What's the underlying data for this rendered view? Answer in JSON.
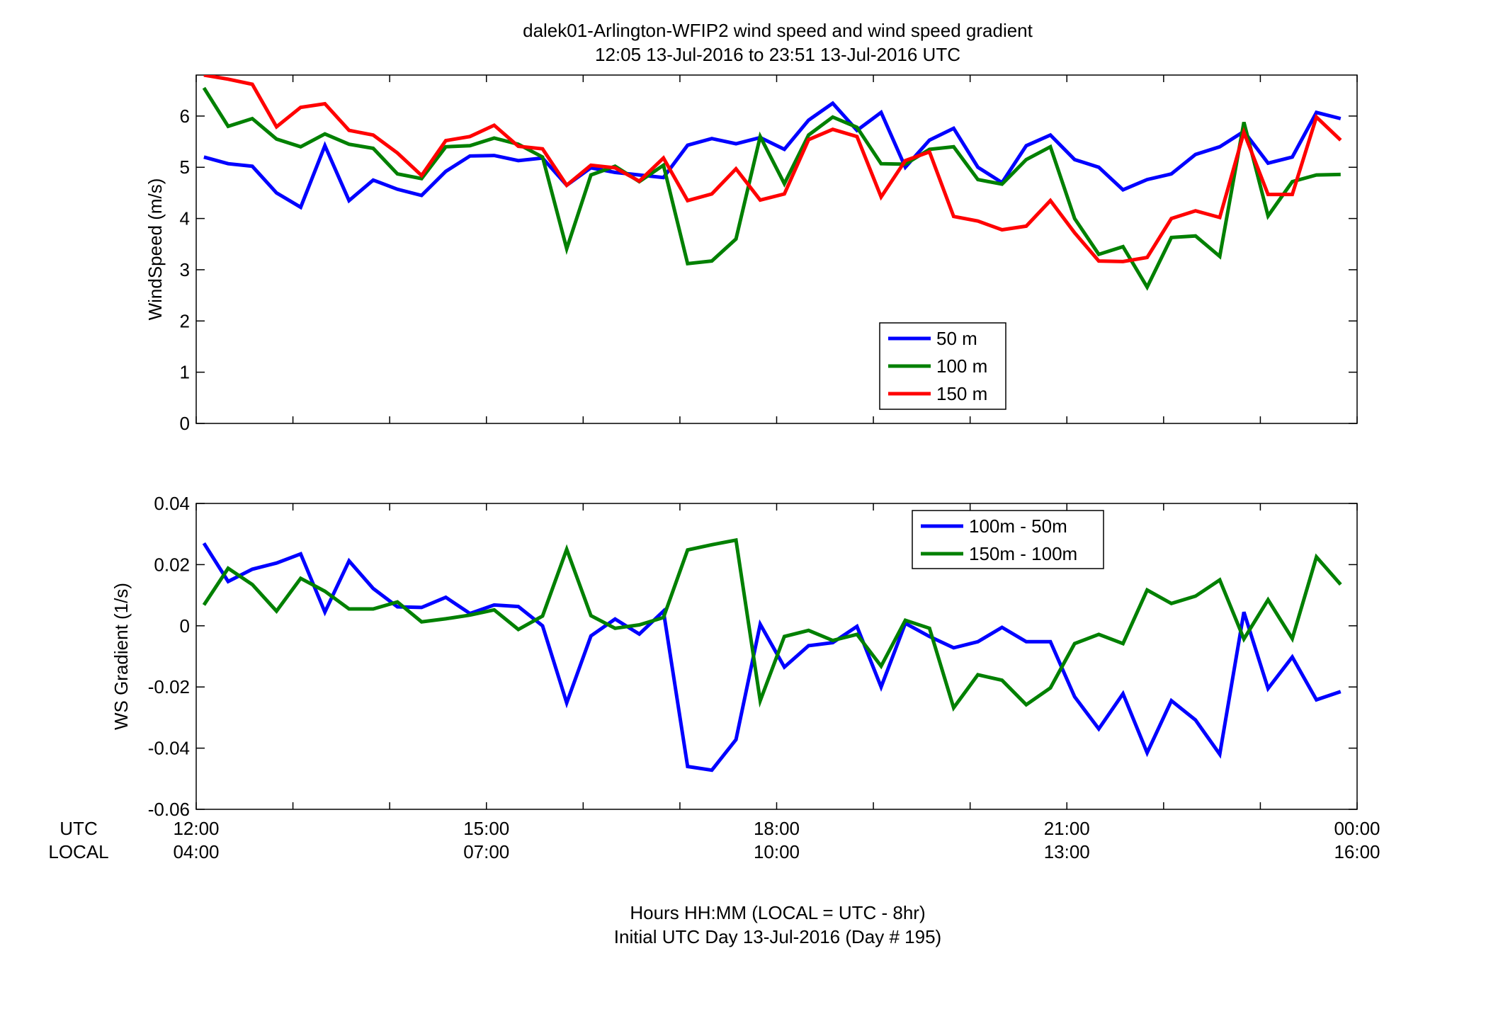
{
  "page": {
    "title_line1": "dalek01-Arlington-WFIP2  wind speed and wind speed gradient",
    "title_line2": "12:05 13-Jul-2016 to 23:51 13-Jul-2016  UTC",
    "row_label_utc": "UTC",
    "row_label_local": "LOCAL",
    "xlabel_line1": "Hours HH:MM  (LOCAL = UTC - 8hr)",
    "xlabel_line2": "Initial UTC Day 13-Jul-2016 (Day # 195)",
    "x_ticks_utc": [
      "12:00",
      "15:00",
      "18:00",
      "21:00",
      "00:00"
    ],
    "x_ticks_local": [
      "04:00",
      "07:00",
      "10:00",
      "13:00",
      "16:00"
    ]
  },
  "chart_data": [
    {
      "type": "line",
      "ylabel": "WindSpeed (m/s)",
      "xlim": [
        12.0,
        24.0
      ],
      "ylim": [
        0,
        6.8
      ],
      "yticks": [
        0,
        1,
        2,
        3,
        4,
        5,
        6
      ],
      "legend_position": "bottom-center",
      "x": [
        12.08,
        12.33,
        12.58,
        12.83,
        13.08,
        13.33,
        13.58,
        13.83,
        14.08,
        14.33,
        14.58,
        14.83,
        15.08,
        15.33,
        15.58,
        15.83,
        16.08,
        16.33,
        16.58,
        16.83,
        17.08,
        17.33,
        17.58,
        17.83,
        18.08,
        18.33,
        18.58,
        18.83,
        19.08,
        19.33,
        19.58,
        19.83,
        20.08,
        20.33,
        20.58,
        20.83,
        21.08,
        21.33,
        21.58,
        21.83,
        22.08,
        22.33,
        22.58,
        22.83,
        23.08,
        23.33,
        23.58,
        23.83
      ],
      "series": [
        {
          "name": "50 m",
          "color": "#0000ff",
          "values": [
            5.2,
            5.07,
            5.02,
            4.5,
            4.22,
            5.42,
            4.35,
            4.75,
            4.57,
            4.45,
            4.92,
            5.22,
            5.23,
            5.13,
            5.18,
            4.65,
            4.99,
            4.9,
            4.85,
            4.8,
            5.43,
            5.56,
            5.46,
            5.58,
            5.35,
            5.92,
            6.25,
            5.72,
            6.07,
            5.0,
            5.53,
            5.76,
            5.0,
            4.7,
            5.42,
            5.63,
            5.15,
            5.0,
            4.56,
            4.76,
            4.87,
            5.25,
            5.4,
            5.7,
            5.08,
            5.2,
            6.07,
            5.95
          ]
        },
        {
          "name": "100 m",
          "color": "#008000",
          "values": [
            6.55,
            5.8,
            5.95,
            5.55,
            5.4,
            5.65,
            5.45,
            5.37,
            4.87,
            4.78,
            5.4,
            5.42,
            5.57,
            5.45,
            5.2,
            3.41,
            4.85,
            5.02,
            4.72,
            5.04,
            3.12,
            3.17,
            3.6,
            5.6,
            4.68,
            5.63,
            5.98,
            5.78,
            5.07,
            5.06,
            5.35,
            5.4,
            4.76,
            4.67,
            5.15,
            5.4,
            4.0,
            3.3,
            3.45,
            2.66,
            3.63,
            3.66,
            3.26,
            5.88,
            4.05,
            4.72,
            4.85,
            4.86
          ]
        },
        {
          "name": "150 m",
          "color": "#ff0000",
          "values": [
            6.8,
            6.72,
            6.62,
            5.79,
            6.17,
            6.24,
            5.72,
            5.63,
            5.28,
            4.84,
            5.52,
            5.6,
            5.82,
            5.41,
            5.36,
            4.65,
            5.04,
            4.99,
            4.73,
            5.18,
            4.35,
            4.48,
            4.97,
            4.36,
            4.48,
            5.54,
            5.74,
            5.6,
            4.42,
            5.13,
            5.3,
            4.04,
            3.95,
            3.78,
            3.85,
            4.35,
            3.72,
            3.17,
            3.16,
            3.24,
            4.0,
            4.15,
            4.02,
            5.68,
            4.47,
            4.47,
            5.98,
            5.53
          ]
        }
      ]
    },
    {
      "type": "line",
      "ylabel": "WS Gradient (1/s)",
      "xlim": [
        12.0,
        24.0
      ],
      "ylim": [
        -0.06,
        0.04
      ],
      "yticks": [
        -0.06,
        -0.04,
        -0.02,
        0,
        0.02,
        0.04
      ],
      "ytick_labels": [
        "-0.06",
        "-0.04",
        "-0.02",
        "0",
        "0.02",
        "0.04"
      ],
      "legend_position": "top-right",
      "x": [
        12.08,
        12.33,
        12.58,
        12.83,
        13.08,
        13.33,
        13.58,
        13.83,
        14.08,
        14.33,
        14.58,
        14.83,
        15.08,
        15.33,
        15.58,
        15.83,
        16.08,
        16.33,
        16.58,
        16.83,
        17.08,
        17.33,
        17.58,
        17.83,
        18.08,
        18.33,
        18.58,
        18.83,
        19.08,
        19.33,
        19.58,
        19.83,
        20.08,
        20.33,
        20.58,
        20.83,
        21.08,
        21.33,
        21.58,
        21.83,
        22.08,
        22.33,
        22.58,
        22.83,
        23.08,
        23.33,
        23.58,
        23.83
      ],
      "series": [
        {
          "name": "100m - 50m",
          "color": "#0000ff",
          "values": [
            0.027,
            0.0145,
            0.0185,
            0.0205,
            0.0235,
            0.0045,
            0.0212,
            0.0122,
            0.0062,
            0.006,
            0.0093,
            0.004,
            0.0068,
            0.0063,
            0.0,
            -0.0252,
            -0.0033,
            0.0022,
            -0.0027,
            0.0048,
            -0.046,
            -0.0472,
            -0.0372,
            0.0005,
            -0.0135,
            -0.0065,
            -0.0055,
            -0.0002,
            -0.02,
            0.0008,
            -0.0035,
            -0.0072,
            -0.0052,
            -0.0005,
            -0.0052,
            -0.0052,
            -0.0232,
            -0.0337,
            -0.0222,
            -0.0415,
            -0.0245,
            -0.0308,
            -0.042,
            0.0045,
            -0.0205,
            -0.0102,
            -0.0242,
            -0.0215
          ]
        },
        {
          "name": "150m - 100m",
          "color": "#008000",
          "values": [
            0.0068,
            0.0188,
            0.0135,
            0.0048,
            0.0155,
            0.0113,
            0.0055,
            0.0055,
            0.0078,
            0.0013,
            0.0023,
            0.0035,
            0.0052,
            -0.0012,
            0.0032,
            0.025,
            0.0033,
            -0.0008,
            0.0003,
            0.0027,
            0.0248,
            0.0265,
            0.028,
            -0.0245,
            -0.0035,
            -0.0015,
            -0.0048,
            -0.0028,
            -0.0132,
            0.0018,
            -0.0008,
            -0.0268,
            -0.016,
            -0.0178,
            -0.0258,
            -0.0203,
            -0.0058,
            -0.0028,
            -0.0058,
            0.0117,
            0.0073,
            0.0097,
            0.015,
            -0.0043,
            0.0085,
            -0.0042,
            0.0225,
            0.0135
          ]
        }
      ]
    }
  ]
}
